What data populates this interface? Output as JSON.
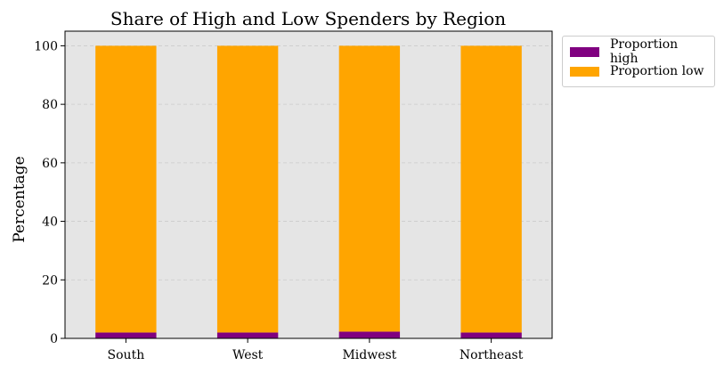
{
  "chart_data": {
    "type": "bar",
    "stacked": true,
    "title": "Share of High and Low Spenders by Region",
    "xlabel": "",
    "ylabel": "Percentage",
    "categories": [
      "South",
      "West",
      "Midwest",
      "Northeast"
    ],
    "series": [
      {
        "name": "Proportion high",
        "color": "#800080",
        "values": [
          2.0,
          2.0,
          2.3,
          2.0
        ]
      },
      {
        "name": "Proportion low",
        "color": "#FFA500",
        "values": [
          98.0,
          98.0,
          97.7,
          98.0
        ]
      }
    ],
    "ylim": [
      0,
      105
    ],
    "yticks": [
      0,
      20,
      40,
      60,
      80,
      100
    ],
    "grid": true,
    "legend_position": "upper-right outside",
    "background": "#E5E5E5"
  }
}
